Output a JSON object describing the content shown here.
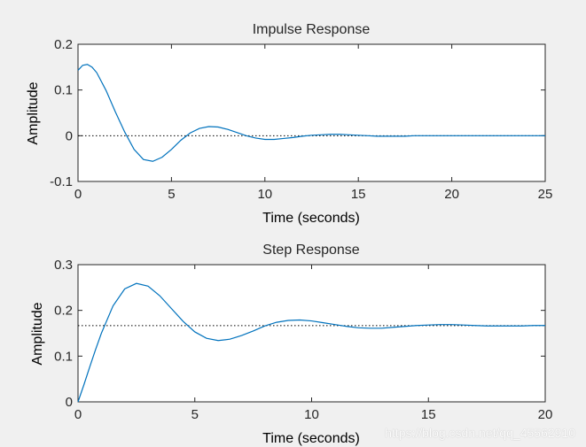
{
  "chart_data": [
    {
      "type": "line",
      "title": "Impulse Response",
      "xlabel": "Time (seconds)",
      "ylabel": "Amplitude",
      "xlim": [
        0,
        25
      ],
      "ylim": [
        -0.1,
        0.2
      ],
      "xticks": [
        "0",
        "5",
        "10",
        "15",
        "20",
        "25"
      ],
      "yticks": [
        "-0.1",
        "0",
        "0.1",
        "0.2"
      ],
      "reference_line": 0,
      "line_color": "#0072bd",
      "series": [
        {
          "x": [
            0,
            0.25,
            0.5,
            0.75,
            1,
            1.5,
            2,
            2.5,
            3,
            3.5,
            4,
            4.5,
            5,
            5.5,
            6,
            6.5,
            7,
            7.5,
            8,
            8.5,
            9,
            9.5,
            10,
            10.5,
            11,
            11.5,
            12,
            12.5,
            13,
            13.5,
            14,
            14.5,
            15,
            15.5,
            16,
            16.5,
            17,
            17.5,
            18,
            18.5,
            19,
            19.5,
            20,
            21,
            22,
            23,
            24,
            25
          ],
          "y": [
            0.143,
            0.154,
            0.156,
            0.15,
            0.138,
            0.099,
            0.052,
            0.008,
            -0.03,
            -0.052,
            -0.056,
            -0.047,
            -0.03,
            -0.01,
            0.006,
            0.016,
            0.02,
            0.019,
            0.014,
            0.007,
            0.0,
            -0.005,
            -0.008,
            -0.008,
            -0.006,
            -0.004,
            -0.001,
            0.001,
            0.002,
            0.003,
            0.003,
            0.002,
            0.001,
            0.0,
            -0.001,
            -0.001,
            -0.001,
            -0.001,
            -0.0,
            0.0,
            0.0,
            0.0,
            0.0,
            0.0,
            0.0,
            0.0,
            0.0,
            0.0
          ]
        }
      ]
    },
    {
      "type": "line",
      "title": "Step Response",
      "xlabel": "Time (seconds)",
      "ylabel": "Amplitude",
      "xlim": [
        0,
        20
      ],
      "ylim": [
        0,
        0.3
      ],
      "xticks": [
        "0",
        "5",
        "10",
        "15",
        "20"
      ],
      "yticks": [
        "0",
        "0.1",
        "0.2",
        "0.3"
      ],
      "reference_line": 0.1667,
      "line_color": "#0072bd",
      "series": [
        {
          "x": [
            0,
            0.25,
            0.5,
            0.75,
            1,
            1.5,
            2,
            2.5,
            3,
            3.5,
            4,
            4.5,
            5,
            5.5,
            6,
            6.5,
            7,
            7.5,
            8,
            8.5,
            9,
            9.5,
            10,
            10.5,
            11,
            11.5,
            12,
            12.5,
            13,
            13.5,
            14,
            14.5,
            15,
            15.5,
            16,
            16.5,
            17,
            17.5,
            18,
            18.5,
            19,
            19.5,
            20
          ],
          "y": [
            0.0,
            0.037,
            0.076,
            0.114,
            0.15,
            0.21,
            0.247,
            0.259,
            0.253,
            0.232,
            0.204,
            0.176,
            0.153,
            0.139,
            0.134,
            0.137,
            0.145,
            0.155,
            0.166,
            0.174,
            0.178,
            0.179,
            0.177,
            0.173,
            0.169,
            0.165,
            0.162,
            0.161,
            0.161,
            0.163,
            0.165,
            0.167,
            0.168,
            0.169,
            0.169,
            0.168,
            0.167,
            0.166,
            0.166,
            0.166,
            0.166,
            0.167,
            0.167
          ]
        }
      ]
    }
  ],
  "watermark": "https://blog.csdn.net/qq_45562910"
}
